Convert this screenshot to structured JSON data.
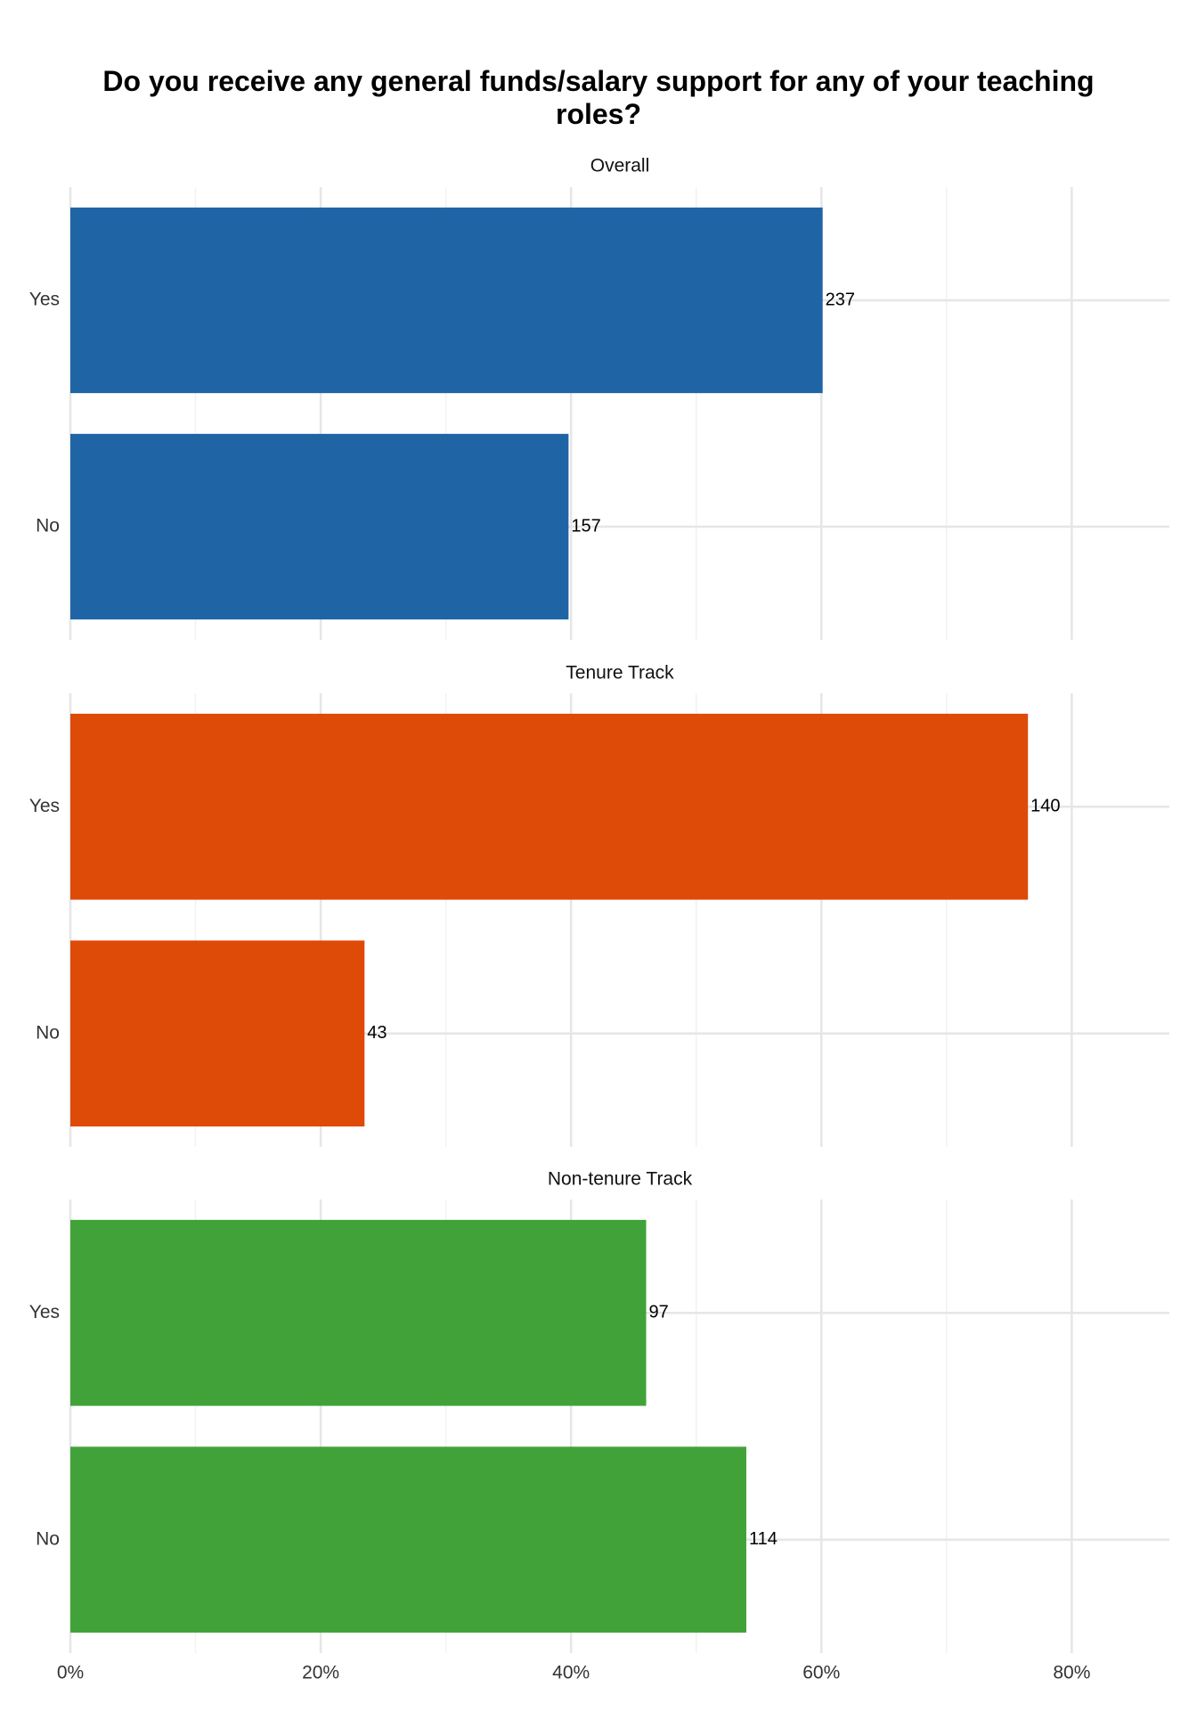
{
  "chart_data": {
    "type": "bar",
    "title": "Do you receive any general funds/salary support for any of your teaching roles?",
    "facets": [
      {
        "name": "Overall",
        "color": "#1f65a6",
        "categories": [
          "Yes",
          "No"
        ],
        "values": [
          60.1,
          39.8
        ],
        "counts": [
          237,
          157
        ]
      },
      {
        "name": "Tenure Track",
        "color": "#de4a08",
        "categories": [
          "Yes",
          "No"
        ],
        "values": [
          76.5,
          23.5
        ],
        "counts": [
          140,
          43
        ]
      },
      {
        "name": "Non-tenure Track",
        "color": "#42a23a",
        "categories": [
          "Yes",
          "No"
        ],
        "values": [
          46.0,
          54.0
        ],
        "counts": [
          97,
          114
        ]
      }
    ],
    "xlim": [
      0,
      87.8
    ],
    "xticks": [
      {
        "value": 0,
        "label": "0%"
      },
      {
        "value": 20,
        "label": "20%"
      },
      {
        "value": 40,
        "label": "40%"
      },
      {
        "value": 60,
        "label": "60%"
      },
      {
        "value": 80,
        "label": "80%"
      }
    ],
    "xminor": [
      10,
      30,
      50,
      70
    ],
    "grid": true
  }
}
